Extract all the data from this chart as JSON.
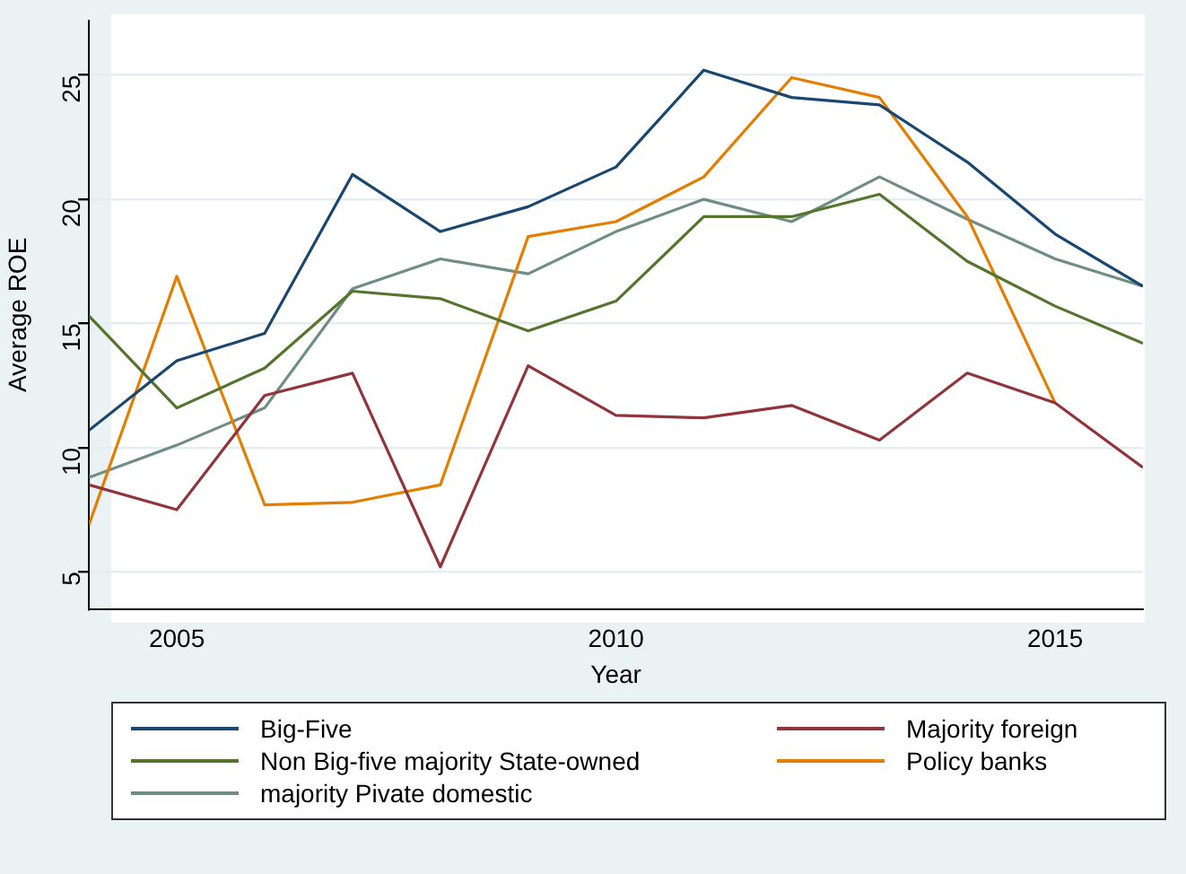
{
  "chart_data": {
    "type": "line",
    "xlabel": "Year",
    "ylabel": "Average ROE",
    "x": [
      2004,
      2005,
      2006,
      2007,
      2008,
      2009,
      2010,
      2011,
      2012,
      2013,
      2014,
      2015,
      2016
    ],
    "series": [
      {
        "name": "Big-Five",
        "color": "#1a476f",
        "values": [
          10.7,
          13.5,
          14.6,
          21.0,
          18.7,
          19.7,
          21.3,
          25.2,
          24.1,
          23.8,
          21.5,
          18.6,
          16.5
        ]
      },
      {
        "name": "Majority foreign",
        "color": "#90353b",
        "values": [
          8.5,
          7.5,
          12.1,
          13.0,
          5.2,
          13.3,
          11.3,
          11.2,
          11.7,
          10.3,
          13.0,
          11.8,
          9.2
        ]
      },
      {
        "name": "Non Big-five majority State-owned",
        "color": "#55752f",
        "values": [
          15.3,
          11.6,
          13.2,
          16.3,
          16.0,
          14.7,
          15.9,
          19.3,
          19.3,
          20.2,
          17.5,
          15.7,
          14.2
        ]
      },
      {
        "name": "Policy banks",
        "color": "#e37e00",
        "values": [
          6.9,
          16.9,
          7.7,
          7.8,
          8.5,
          18.5,
          19.1,
          20.9,
          24.9,
          24.1,
          19.3,
          11.8,
          null
        ]
      },
      {
        "name": "majority Pivate domestic",
        "color": "#6e8e84",
        "values": [
          8.8,
          10.1,
          11.6,
          16.4,
          17.6,
          17.0,
          18.7,
          20.0,
          19.1,
          20.9,
          19.2,
          17.6,
          16.5
        ]
      }
    ],
    "xlim": [
      2004,
      2016
    ],
    "xticks": [
      2005,
      2010,
      2015
    ],
    "ylim": [
      3.5,
      27.2
    ],
    "yticks": [
      5,
      10,
      15,
      20,
      25
    ],
    "grid": "y",
    "legend": "bottom",
    "marker": "none",
    "line_style": "solid"
  }
}
